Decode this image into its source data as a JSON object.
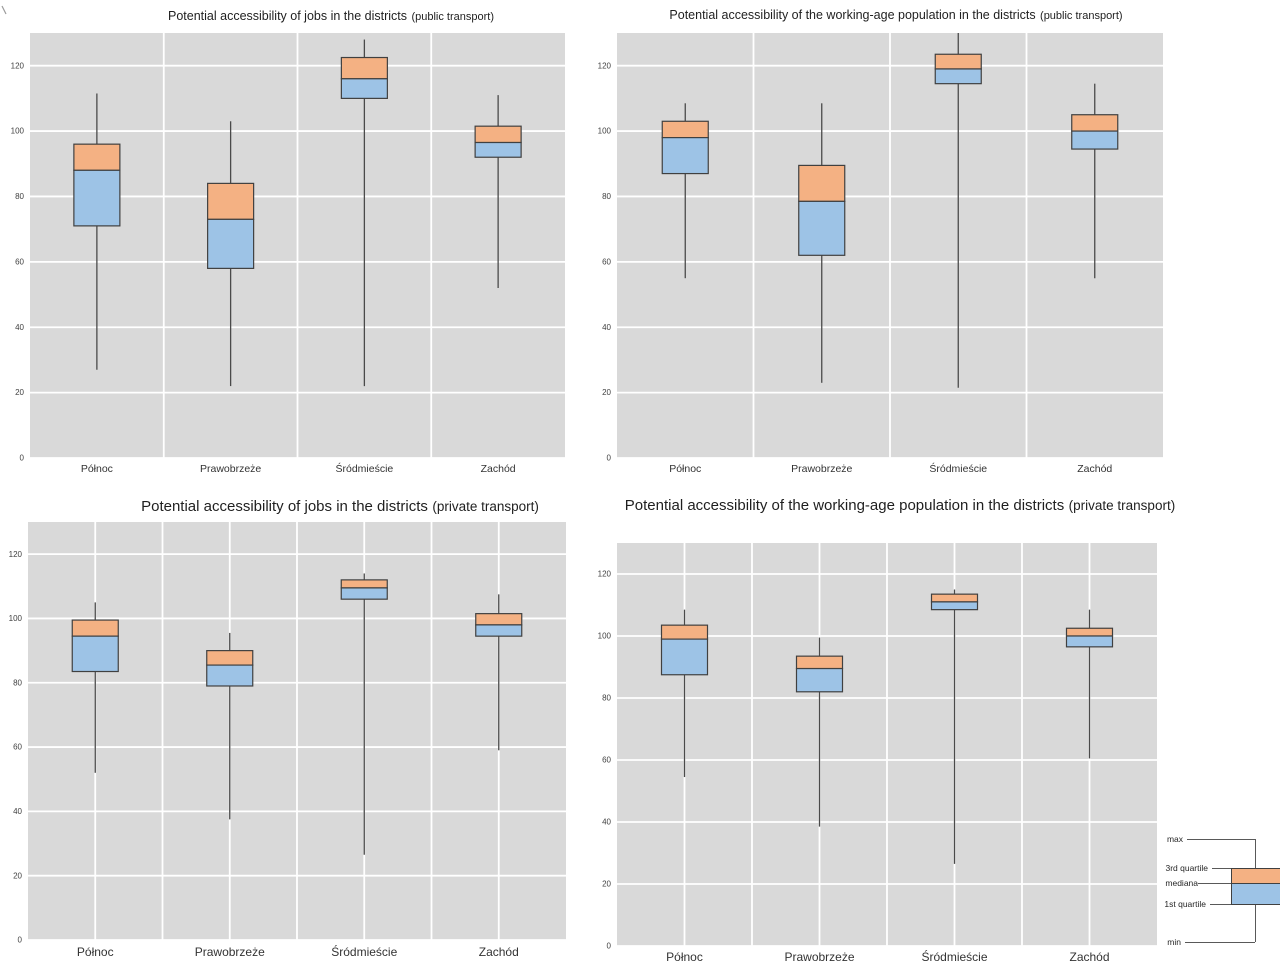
{
  "colors": {
    "plot_background": "#d9d9d9",
    "gridline": "#ffffff",
    "box_upper_fill": "#f4b183",
    "box_lower_fill": "#9dc3e6",
    "box_border": "#404040",
    "whisker": "#4a4a4a",
    "title_text": "#1f1f1f",
    "tick_text": "#404040",
    "category_text": "#333333"
  },
  "legend": {
    "items": [
      {
        "label": "max"
      },
      {
        "label": "3rd quartile"
      },
      {
        "label": "mediana"
      },
      {
        "label": "1st quartile"
      },
      {
        "label": "min"
      }
    ]
  },
  "chart_data": [
    {
      "type": "boxplot",
      "title": "Potential accessibility of jobs in the districts",
      "subtitle": "(public transport)",
      "xlabel": "",
      "ylabel": "",
      "ylim": [
        0,
        130
      ],
      "yticks": [
        0,
        20,
        40,
        60,
        80,
        100,
        120
      ],
      "grid": true,
      "categories": [
        "Północ",
        "Prawobrzeże",
        "Śródmieście",
        "Zachód"
      ],
      "series": [
        {
          "name": "Północ",
          "min": 27,
          "q1": 71,
          "median": 88,
          "q3": 96,
          "max": 111.5
        },
        {
          "name": "Prawobrzeże",
          "min": 22,
          "q1": 58,
          "median": 73,
          "q3": 84,
          "max": 103
        },
        {
          "name": "Śródmieście",
          "min": 22,
          "q1": 110,
          "median": 116,
          "q3": 122.5,
          "max": 128
        },
        {
          "name": "Zachód",
          "min": 52,
          "q1": 92,
          "median": 96.5,
          "q3": 101.5,
          "max": 111
        }
      ]
    },
    {
      "type": "boxplot",
      "title": "Potential accessibility of the working-age population in the districts",
      "subtitle": "(public transport)",
      "xlabel": "",
      "ylabel": "",
      "ylim": [
        0,
        130
      ],
      "yticks": [
        0,
        20,
        40,
        60,
        80,
        100,
        120
      ],
      "grid": true,
      "categories": [
        "Północ",
        "Prawobrzeże",
        "Śródmieście",
        "Zachód"
      ],
      "series": [
        {
          "name": "Północ",
          "min": 55,
          "q1": 87,
          "median": 98,
          "q3": 103,
          "max": 108.5
        },
        {
          "name": "Prawobrzeże",
          "min": 23,
          "q1": 62,
          "median": 78.5,
          "q3": 89.5,
          "max": 108.5
        },
        {
          "name": "Śródmieście",
          "min": 21.5,
          "q1": 114.5,
          "median": 119,
          "q3": 123.5,
          "max": 130
        },
        {
          "name": "Zachód",
          "min": 55,
          "q1": 94.5,
          "median": 100,
          "q3": 105,
          "max": 114.5
        }
      ]
    },
    {
      "type": "boxplot",
      "title": "Potential accessibility of jobs in the districts",
      "subtitle": "(private transport)",
      "xlabel": "",
      "ylabel": "",
      "ylim": [
        0,
        130
      ],
      "yticks": [
        0,
        20,
        40,
        60,
        80,
        100,
        120
      ],
      "grid": true,
      "categories": [
        "Północ",
        "Prawobrzeże",
        "Śródmieście",
        "Zachód"
      ],
      "series": [
        {
          "name": "Północ",
          "min": 52,
          "q1": 83.5,
          "median": 94.5,
          "q3": 99.5,
          "max": 105
        },
        {
          "name": "Prawobrzeże",
          "min": 37.5,
          "q1": 79,
          "median": 85.5,
          "q3": 90,
          "max": 95.5
        },
        {
          "name": "Śródmieście",
          "min": 26.5,
          "q1": 106,
          "median": 109.5,
          "q3": 112,
          "max": 114
        },
        {
          "name": "Zachód",
          "min": 59,
          "q1": 94.5,
          "median": 98,
          "q3": 101.5,
          "max": 107.5
        }
      ]
    },
    {
      "type": "boxplot",
      "title": "Potential accessibility of the working-age population in the districts",
      "subtitle": "(private transport)",
      "xlabel": "",
      "ylabel": "",
      "ylim": [
        0,
        130
      ],
      "yticks": [
        0,
        20,
        40,
        60,
        80,
        100,
        120
      ],
      "grid": true,
      "categories": [
        "Północ",
        "Prawobrzeże",
        "Śródmieście",
        "Zachód"
      ],
      "series": [
        {
          "name": "Północ",
          "min": 54.5,
          "q1": 87.5,
          "median": 99,
          "q3": 103.5,
          "max": 108.5
        },
        {
          "name": "Prawobrzeże",
          "min": 38.5,
          "q1": 82,
          "median": 89.5,
          "q3": 93.5,
          "max": 99.5
        },
        {
          "name": "Śródmieście",
          "min": 26.5,
          "q1": 108.5,
          "median": 111,
          "q3": 113.5,
          "max": 115
        },
        {
          "name": "Zachód",
          "min": 60.5,
          "q1": 96.5,
          "median": 100,
          "q3": 102.5,
          "max": 108.5
        }
      ]
    }
  ]
}
